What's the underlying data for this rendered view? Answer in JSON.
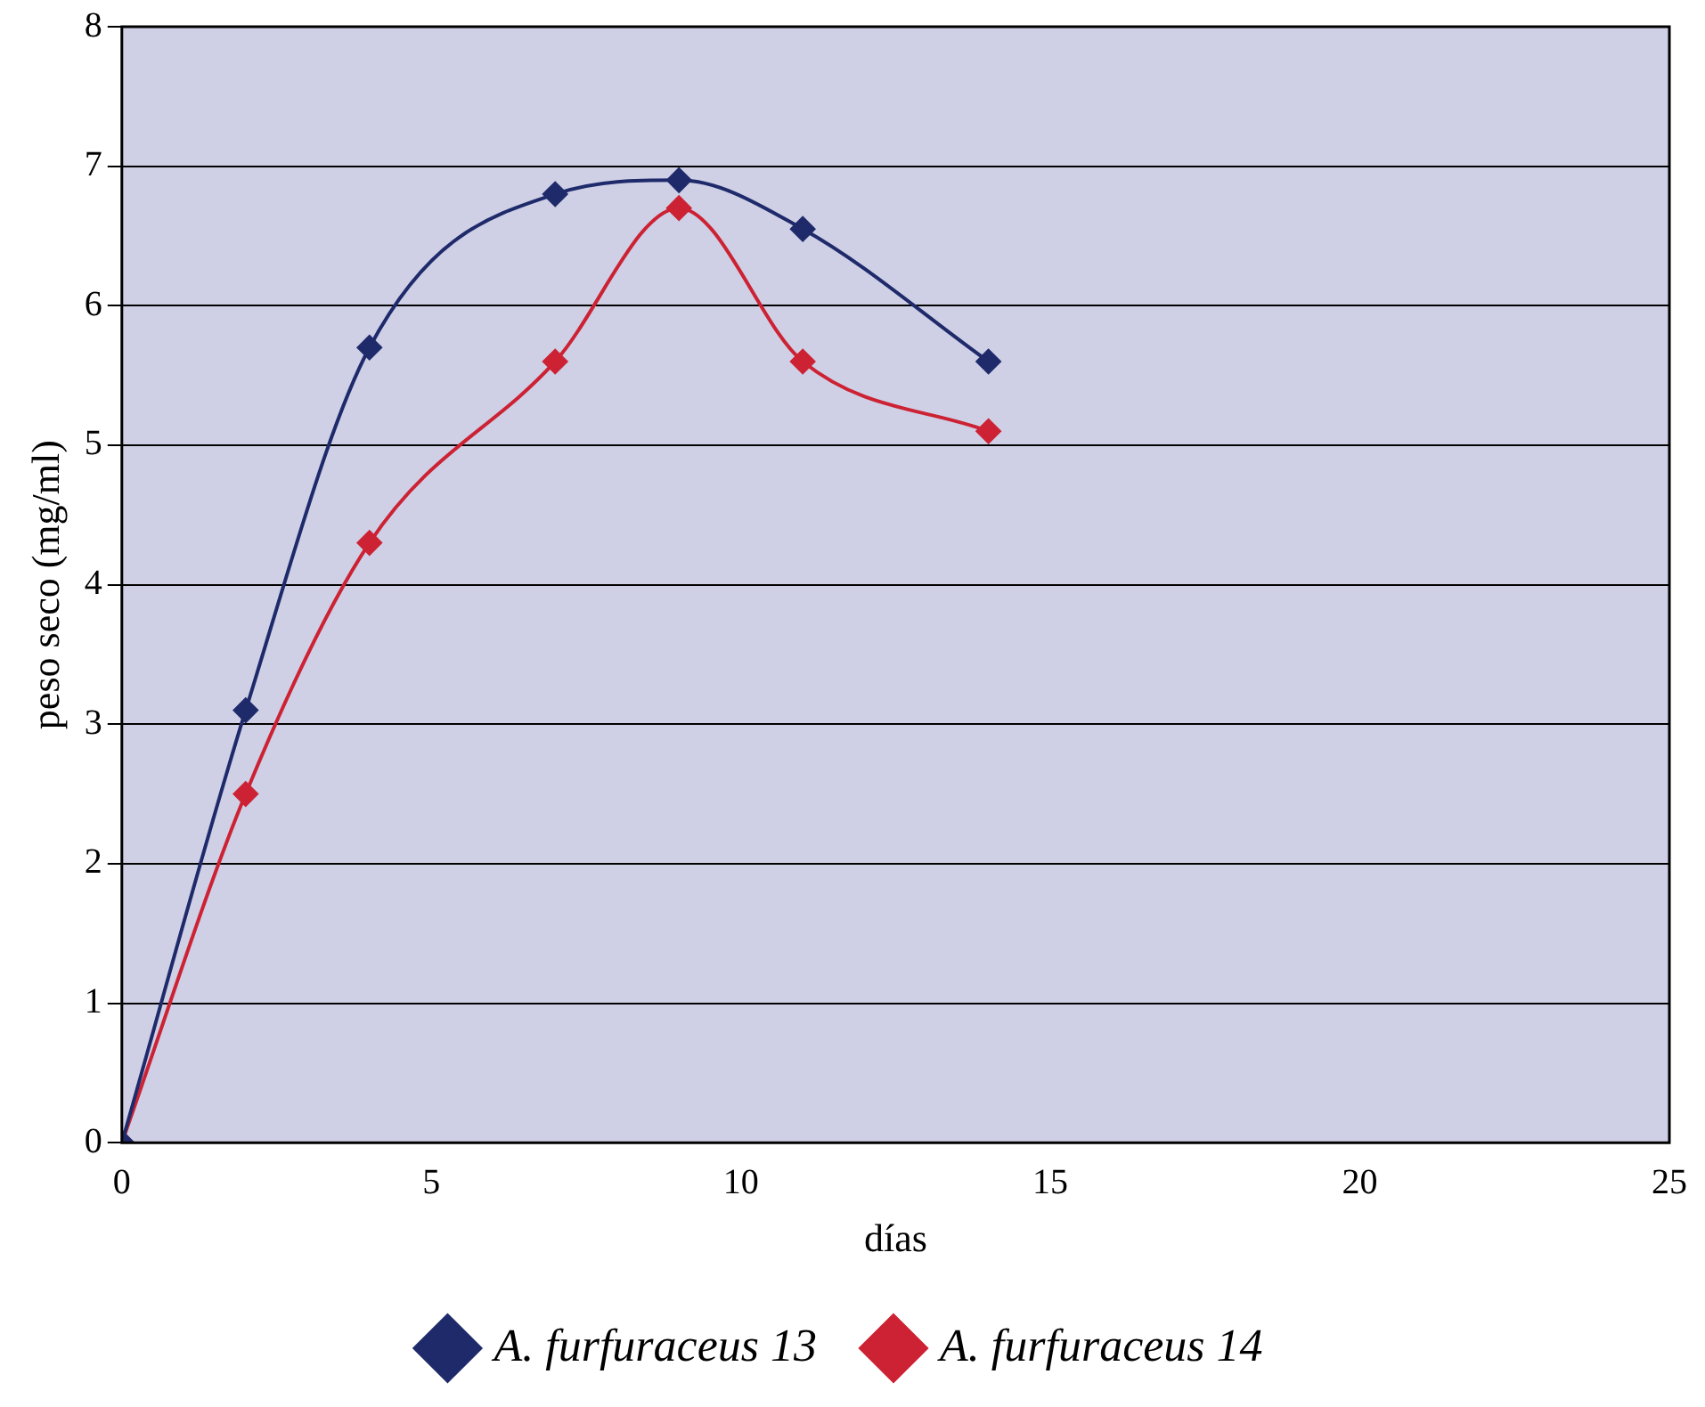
{
  "chart_data": {
    "type": "line",
    "xlabel": "días",
    "ylabel": "peso seco (mg/ml)",
    "xlim": [
      0,
      25
    ],
    "xticks": [
      0,
      5,
      10,
      15,
      20,
      25
    ],
    "ylim": [
      0,
      8
    ],
    "yticks": [
      0,
      1,
      2,
      3,
      4,
      5,
      6,
      7,
      8
    ],
    "grid": "y",
    "legend": "bottom",
    "marker": "diamond",
    "line_style": "solid",
    "series": [
      {
        "name": "A. furfuraceus 13",
        "color": "#1f2a6b",
        "x": [
          0,
          2,
          4,
          7,
          9,
          11,
          14
        ],
        "values": [
          0,
          3.1,
          5.7,
          6.8,
          6.9,
          6.55,
          5.6
        ]
      },
      {
        "name": "A. furfuraceus 14",
        "color": "#cc2233",
        "x": [
          0,
          2,
          4,
          7,
          9,
          11,
          14
        ],
        "values": [
          0,
          2.5,
          4.3,
          5.6,
          6.7,
          5.6,
          5.1
        ]
      }
    ]
  }
}
